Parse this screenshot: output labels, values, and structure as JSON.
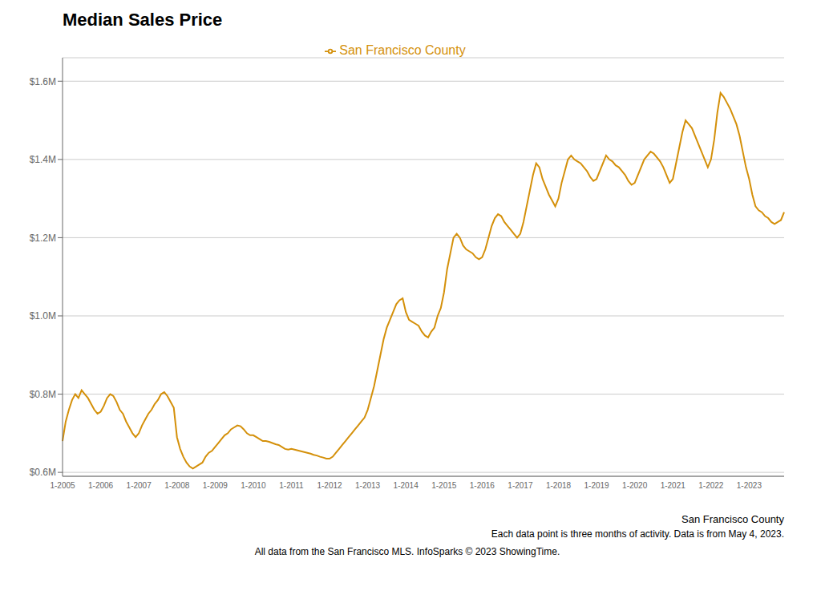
{
  "chart_data": {
    "type": "line",
    "title": "Median Sales Price",
    "subtitle": "San Francisco County",
    "annotations": [
      "Each data point is three months of activity. Data is from May 4, 2023.",
      "All data from the San Francisco MLS. InfoSparks © 2023 ShowingTime."
    ],
    "categories": [
      "1-2005",
      null,
      null,
      null,
      null,
      null,
      null,
      null,
      null,
      null,
      null,
      null,
      "1-2006",
      null,
      null,
      null,
      null,
      null,
      null,
      null,
      null,
      null,
      null,
      null,
      "1-2007",
      null,
      null,
      null,
      null,
      null,
      null,
      null,
      null,
      null,
      null,
      null,
      "1-2008",
      null,
      null,
      null,
      null,
      null,
      null,
      null,
      null,
      null,
      null,
      null,
      "1-2009",
      null,
      null,
      null,
      null,
      null,
      null,
      null,
      null,
      null,
      null,
      null,
      "1-2010",
      null,
      null,
      null,
      null,
      null,
      null,
      null,
      null,
      null,
      null,
      null,
      "1-2011",
      null,
      null,
      null,
      null,
      null,
      null,
      null,
      null,
      null,
      null,
      null,
      "1-2012",
      null,
      null,
      null,
      null,
      null,
      null,
      null,
      null,
      null,
      null,
      null,
      "1-2013",
      null,
      null,
      null,
      null,
      null,
      null,
      null,
      null,
      null,
      null,
      null,
      "1-2014",
      null,
      null,
      null,
      null,
      null,
      null,
      null,
      null,
      null,
      null,
      null,
      "1-2015",
      null,
      null,
      null,
      null,
      null,
      null,
      null,
      null,
      null,
      null,
      null,
      "1-2016",
      null,
      null,
      null,
      null,
      null,
      null,
      null,
      null,
      null,
      null,
      null,
      "1-2017",
      null,
      null,
      null,
      null,
      null,
      null,
      null,
      null,
      null,
      null,
      null,
      "1-2018",
      null,
      null,
      null,
      null,
      null,
      null,
      null,
      null,
      null,
      null,
      null,
      "1-2019",
      null,
      null,
      null,
      null,
      null,
      null,
      null,
      null,
      null,
      null,
      null,
      "1-2020",
      null,
      null,
      null,
      null,
      null,
      null,
      null,
      null,
      null,
      null,
      null,
      "1-2021",
      null,
      null,
      null,
      null,
      null,
      null,
      null,
      null,
      null,
      null,
      null,
      "1-2022",
      null,
      null,
      null,
      null,
      null,
      null,
      null,
      null,
      null,
      null,
      null,
      "1-2023",
      null,
      null,
      null,
      null,
      null,
      null,
      null,
      null,
      null,
      null,
      null
    ],
    "series": [
      {
        "name": "San Francisco County",
        "color": "#D4900A",
        "values": [
          680000,
          730000,
          760000,
          785000,
          800000,
          790000,
          810000,
          800000,
          790000,
          775000,
          760000,
          750000,
          755000,
          770000,
          790000,
          800000,
          795000,
          780000,
          760000,
          750000,
          730000,
          715000,
          700000,
          690000,
          700000,
          720000,
          735000,
          750000,
          760000,
          775000,
          785000,
          800000,
          805000,
          795000,
          780000,
          765000,
          690000,
          660000,
          640000,
          625000,
          615000,
          610000,
          615000,
          620000,
          625000,
          640000,
          650000,
          655000,
          665000,
          675000,
          685000,
          695000,
          700000,
          710000,
          715000,
          720000,
          718000,
          710000,
          700000,
          695000,
          695000,
          690000,
          685000,
          680000,
          680000,
          678000,
          675000,
          672000,
          670000,
          665000,
          660000,
          658000,
          660000,
          658000,
          656000,
          654000,
          652000,
          650000,
          648000,
          645000,
          643000,
          640000,
          638000,
          635000,
          635000,
          640000,
          650000,
          660000,
          670000,
          680000,
          690000,
          700000,
          710000,
          720000,
          730000,
          740000,
          760000,
          790000,
          820000,
          860000,
          900000,
          940000,
          970000,
          990000,
          1010000,
          1030000,
          1040000,
          1045000,
          1010000,
          990000,
          985000,
          980000,
          975000,
          960000,
          950000,
          945000,
          960000,
          970000,
          1000000,
          1020000,
          1060000,
          1120000,
          1160000,
          1200000,
          1210000,
          1200000,
          1180000,
          1170000,
          1165000,
          1160000,
          1150000,
          1145000,
          1150000,
          1170000,
          1200000,
          1230000,
          1250000,
          1260000,
          1255000,
          1240000,
          1230000,
          1220000,
          1210000,
          1200000,
          1210000,
          1240000,
          1280000,
          1320000,
          1360000,
          1390000,
          1380000,
          1350000,
          1330000,
          1310000,
          1295000,
          1280000,
          1300000,
          1340000,
          1370000,
          1400000,
          1410000,
          1400000,
          1395000,
          1390000,
          1380000,
          1370000,
          1355000,
          1345000,
          1350000,
          1370000,
          1390000,
          1410000,
          1400000,
          1395000,
          1385000,
          1380000,
          1370000,
          1360000,
          1345000,
          1335000,
          1340000,
          1360000,
          1380000,
          1400000,
          1410000,
          1420000,
          1415000,
          1405000,
          1395000,
          1380000,
          1360000,
          1340000,
          1350000,
          1390000,
          1430000,
          1470000,
          1500000,
          1490000,
          1480000,
          1460000,
          1440000,
          1420000,
          1400000,
          1380000,
          1400000,
          1450000,
          1520000,
          1570000,
          1560000,
          1545000,
          1530000,
          1510000,
          1490000,
          1460000,
          1420000,
          1380000,
          1350000,
          1310000,
          1280000,
          1270000,
          1265000,
          1255000,
          1250000,
          1240000,
          1235000,
          1240000,
          1245000,
          1265000
        ]
      }
    ],
    "ylim": [
      590000,
      1660000
    ],
    "yticks": [
      {
        "value": 600000,
        "label": "$0.6M"
      },
      {
        "value": 800000,
        "label": "$0.8M"
      },
      {
        "value": 1000000,
        "label": "$1.0M"
      },
      {
        "value": 1200000,
        "label": "$1.2M"
      },
      {
        "value": 1400000,
        "label": "$1.4M"
      },
      {
        "value": 1600000,
        "label": "$1.6M"
      }
    ],
    "grid": true,
    "legend": "top"
  }
}
